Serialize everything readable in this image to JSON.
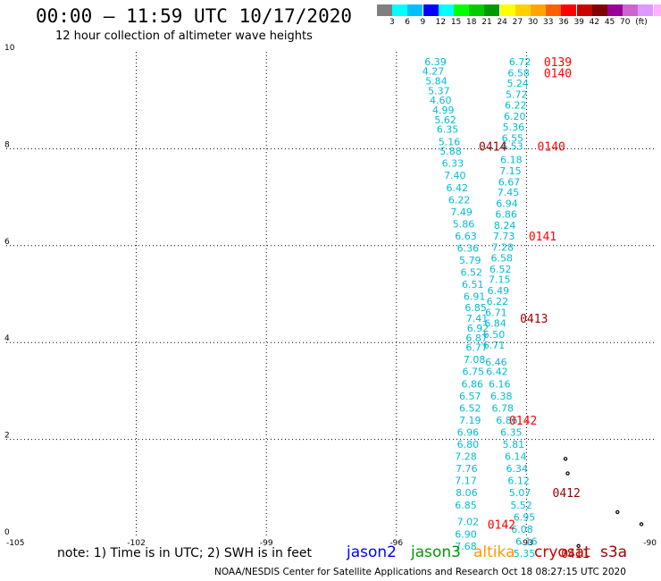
{
  "header": {
    "title": "00:00 – 11:59 UTC 10/17/2020",
    "subtitle": "12 hour collection of altimeter wave heights"
  },
  "legend": {
    "colors": [
      "#808080",
      "#00ffff",
      "#00bfff",
      "#0000ff",
      "#00ffff",
      "#00ff00",
      "#00cc00",
      "#009900",
      "#ffff00",
      "#ffd000",
      "#ffa500",
      "#ff6000",
      "#ff0000",
      "#cc0000",
      "#800000",
      "#990099",
      "#cc66cc",
      "#dd99ff",
      "#ffb0ff",
      "#000000"
    ],
    "labels": [
      "3",
      "6",
      "9",
      "12",
      "15",
      "18",
      "21",
      "24",
      "27",
      "30",
      "33",
      "36",
      "39",
      "42",
      "45",
      "70",
      "(ft)"
    ]
  },
  "footer": {
    "note": "note: 1) Time is in UTC; 2) SWH is in feet",
    "credit": "NOAA/NESDIS Center for Satellite Applications and Research    Oct 18 08:27:15 UTC 2020",
    "satellites": [
      {
        "name": "jason2",
        "color": "#0000ff"
      },
      {
        "name": "jason3",
        "color": "#009900"
      },
      {
        "name": "altika",
        "color": "#ff9900"
      },
      {
        "name": "cryosat",
        "color": "#cc0000"
      },
      {
        "name": "s3a",
        "color": "#990000"
      }
    ]
  },
  "chart_data": {
    "type": "scatter",
    "xlim": [
      -105,
      -90
    ],
    "ylim": [
      0,
      10
    ],
    "x_ticks": [
      -105,
      -102,
      -99,
      -96,
      -93,
      -90
    ],
    "x_tick_labels": [
      "-105",
      "-102",
      "-99",
      "-96",
      "-93",
      "-90"
    ],
    "y_ticks": [
      0,
      2,
      4,
      6,
      8,
      10
    ],
    "y_tick_labels": [
      "0",
      "2",
      "4",
      "6",
      "8",
      "10"
    ],
    "grid": true,
    "series": [
      {
        "name": "jason3",
        "color": "#00bcd4",
        "points": [
          {
            "x": -95.1,
            "y": 9.8,
            "v": "6.39"
          },
          {
            "x": -95.15,
            "y": 9.6,
            "v": "4.27"
          },
          {
            "x": -95.08,
            "y": 9.4,
            "v": "5.84"
          },
          {
            "x": -95.02,
            "y": 9.2,
            "v": "5.37"
          },
          {
            "x": -94.98,
            "y": 9.0,
            "v": "4.60"
          },
          {
            "x": -94.92,
            "y": 8.8,
            "v": "4.99"
          },
          {
            "x": -94.87,
            "y": 8.6,
            "v": "5.62"
          },
          {
            "x": -94.82,
            "y": 8.4,
            "v": "6.35"
          },
          {
            "x": -94.78,
            "y": 8.15,
            "v": "5.16"
          },
          {
            "x": -94.75,
            "y": 7.95,
            "v": "5.88"
          },
          {
            "x": -94.7,
            "y": 7.7,
            "v": "6.33"
          },
          {
            "x": -94.65,
            "y": 7.45,
            "v": "7.40"
          },
          {
            "x": -94.6,
            "y": 7.2,
            "v": "6.42"
          },
          {
            "x": -94.55,
            "y": 6.95,
            "v": "6.22"
          },
          {
            "x": -94.5,
            "y": 6.7,
            "v": "7.49"
          },
          {
            "x": -94.45,
            "y": 6.45,
            "v": "5.86"
          },
          {
            "x": -94.4,
            "y": 6.2,
            "v": "6.63"
          },
          {
            "x": -94.35,
            "y": 5.95,
            "v": "6.36"
          },
          {
            "x": -94.3,
            "y": 5.7,
            "v": "5.79"
          },
          {
            "x": -94.27,
            "y": 5.45,
            "v": "6.52"
          },
          {
            "x": -94.24,
            "y": 5.2,
            "v": "6.51"
          },
          {
            "x": -94.2,
            "y": 4.95,
            "v": "6.91"
          },
          {
            "x": -94.17,
            "y": 4.72,
            "v": "6.85"
          },
          {
            "x": -94.14,
            "y": 4.5,
            "v": "7.41"
          },
          {
            "x": -94.12,
            "y": 4.3,
            "v": "6.92"
          },
          {
            "x": -94.15,
            "y": 4.1,
            "v": "6.87"
          },
          {
            "x": -94.15,
            "y": 3.9,
            "v": "6.77"
          },
          {
            "x": -94.2,
            "y": 3.65,
            "v": "7.08"
          },
          {
            "x": -94.23,
            "y": 3.4,
            "v": "6.75"
          },
          {
            "x": -94.25,
            "y": 3.15,
            "v": "6.86"
          },
          {
            "x": -94.3,
            "y": 2.9,
            "v": "6.57"
          },
          {
            "x": -94.3,
            "y": 2.65,
            "v": "6.52"
          },
          {
            "x": -94.3,
            "y": 2.4,
            "v": "7.19"
          },
          {
            "x": -94.35,
            "y": 2.15,
            "v": "6.96"
          },
          {
            "x": -94.35,
            "y": 1.9,
            "v": "6.80"
          },
          {
            "x": -94.4,
            "y": 1.65,
            "v": "7.28"
          },
          {
            "x": -94.38,
            "y": 1.4,
            "v": "7.76"
          },
          {
            "x": -94.4,
            "y": 1.15,
            "v": "7.17"
          },
          {
            "x": -94.38,
            "y": 0.9,
            "v": "8.06"
          },
          {
            "x": -94.4,
            "y": 0.65,
            "v": "6.85"
          },
          {
            "x": -94.35,
            "y": 0.3,
            "v": "7.02"
          },
          {
            "x": -94.4,
            "y": 0.05,
            "v": "6.90"
          },
          {
            "x": -94.4,
            "y": -0.2,
            "v": "7.68"
          }
        ]
      },
      {
        "name": "jason2",
        "color": "#00bcd4",
        "points": [
          {
            "x": -93.15,
            "y": 9.8,
            "v": "6.72"
          },
          {
            "x": -93.18,
            "y": 9.57,
            "v": "6.58"
          },
          {
            "x": -93.2,
            "y": 9.35,
            "v": "5.24"
          },
          {
            "x": -93.23,
            "y": 9.12,
            "v": "5.72"
          },
          {
            "x": -93.25,
            "y": 8.9,
            "v": "6.22"
          },
          {
            "x": -93.27,
            "y": 8.67,
            "v": "6.20"
          },
          {
            "x": -93.3,
            "y": 8.45,
            "v": "5.36"
          },
          {
            "x": -93.32,
            "y": 8.22,
            "v": "6.55"
          },
          {
            "x": -93.33,
            "y": 8.05,
            "v": "6.53"
          },
          {
            "x": -93.35,
            "y": 7.78,
            "v": "6.18"
          },
          {
            "x": -93.37,
            "y": 7.55,
            "v": "7.15"
          },
          {
            "x": -93.4,
            "y": 7.32,
            "v": "6.67"
          },
          {
            "x": -93.42,
            "y": 7.1,
            "v": "7.45"
          },
          {
            "x": -93.45,
            "y": 6.87,
            "v": "6.94"
          },
          {
            "x": -93.47,
            "y": 6.65,
            "v": "6.86"
          },
          {
            "x": -93.5,
            "y": 6.42,
            "v": "8.24"
          },
          {
            "x": -93.52,
            "y": 6.2,
            "v": "7.73"
          },
          {
            "x": -93.55,
            "y": 5.97,
            "v": "7.28"
          },
          {
            "x": -93.57,
            "y": 5.75,
            "v": "6.58"
          },
          {
            "x": -93.6,
            "y": 5.52,
            "v": "6.52"
          },
          {
            "x": -93.62,
            "y": 5.3,
            "v": "7.15"
          },
          {
            "x": -93.65,
            "y": 5.07,
            "v": "6.49"
          },
          {
            "x": -93.67,
            "y": 4.85,
            "v": "6.22"
          },
          {
            "x": -93.7,
            "y": 4.62,
            "v": "6.71"
          },
          {
            "x": -93.72,
            "y": 4.4,
            "v": "6.84"
          },
          {
            "x": -93.75,
            "y": 4.17,
            "v": "6.50"
          },
          {
            "x": -93.75,
            "y": 3.95,
            "v": "6.71"
          },
          {
            "x": -93.7,
            "y": 3.6,
            "v": "6.46"
          },
          {
            "x": -93.68,
            "y": 3.4,
            "v": "6.42"
          },
          {
            "x": -93.62,
            "y": 3.15,
            "v": "6.16"
          },
          {
            "x": -93.58,
            "y": 2.9,
            "v": "6.38"
          },
          {
            "x": -93.55,
            "y": 2.65,
            "v": "6.78"
          },
          {
            "x": -93.45,
            "y": 2.4,
            "v": "6.86"
          },
          {
            "x": -93.35,
            "y": 2.15,
            "v": "6.35"
          },
          {
            "x": -93.3,
            "y": 1.9,
            "v": "5.81"
          },
          {
            "x": -93.25,
            "y": 1.65,
            "v": "6.14"
          },
          {
            "x": -93.22,
            "y": 1.4,
            "v": "6.34"
          },
          {
            "x": -93.18,
            "y": 1.15,
            "v": "6.12"
          },
          {
            "x": -93.15,
            "y": 0.9,
            "v": "5.07"
          },
          {
            "x": -93.12,
            "y": 0.65,
            "v": "5.52"
          },
          {
            "x": -93.05,
            "y": 0.4,
            "v": "6.95"
          },
          {
            "x": -93.1,
            "y": 0.15,
            "v": "6.08"
          },
          {
            "x": -93.0,
            "y": -0.1,
            "v": "6.16"
          },
          {
            "x": -93.05,
            "y": -0.35,
            "v": "5.35"
          }
        ]
      }
    ],
    "time_labels": [
      {
        "x": -92.6,
        "y": 9.8,
        "text": "0139",
        "color": "#ff0000"
      },
      {
        "x": -92.6,
        "y": 9.57,
        "text": "0140",
        "color": "#ff0000"
      },
      {
        "x": -94.1,
        "y": 8.05,
        "text": "0414",
        "color": "#990000"
      },
      {
        "x": -92.75,
        "y": 8.05,
        "text": "0140",
        "color": "#ff0000"
      },
      {
        "x": -92.95,
        "y": 6.2,
        "text": "0141",
        "color": "#ff0000"
      },
      {
        "x": -93.15,
        "y": 4.5,
        "text": "0413",
        "color": "#990000"
      },
      {
        "x": -93.4,
        "y": 2.4,
        "text": "0142",
        "color": "#ff0000"
      },
      {
        "x": -92.4,
        "y": 0.9,
        "text": "0412",
        "color": "#990000"
      },
      {
        "x": -93.9,
        "y": 0.25,
        "text": "0142",
        "color": "#ff0000"
      },
      {
        "x": -92.2,
        "y": -0.35,
        "text": "0411",
        "color": "#990000"
      }
    ],
    "land_marks": [
      {
        "x": -92.1,
        "y": 1.6
      },
      {
        "x": -92.05,
        "y": 1.3
      },
      {
        "x": -91.8,
        "y": -0.2
      },
      {
        "x": -90.9,
        "y": 0.5
      },
      {
        "x": -90.35,
        "y": 0.25
      }
    ]
  }
}
